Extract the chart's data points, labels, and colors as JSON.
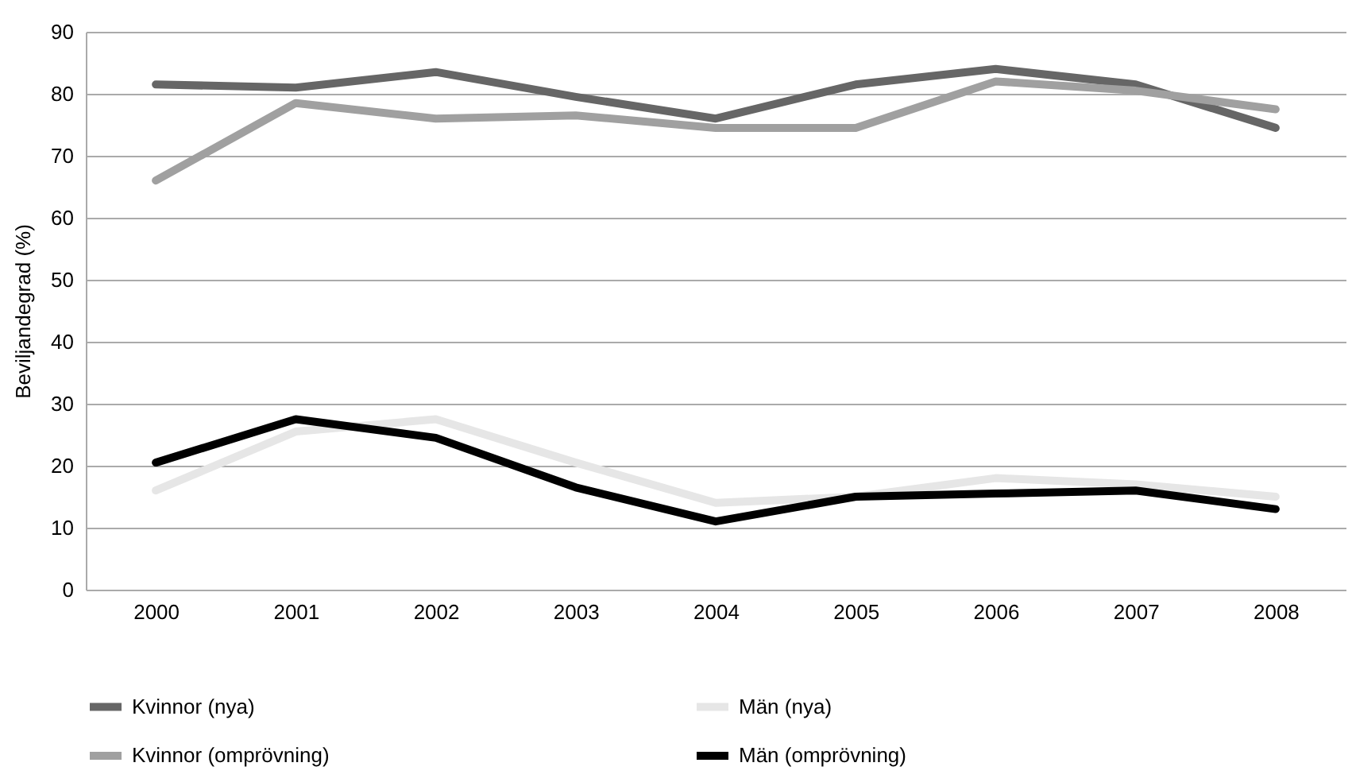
{
  "chart_data": {
    "type": "line",
    "ylabel": "Beviljandegrad (%)",
    "categories": [
      "2000",
      "2001",
      "2002",
      "2003",
      "2004",
      "2005",
      "2006",
      "2007",
      "2008"
    ],
    "series": [
      {
        "name": "Kvinnor (nya)",
        "color": "#666666",
        "values": [
          81.5,
          81,
          83.5,
          79.5,
          76,
          81.5,
          84,
          81.5,
          74.5
        ]
      },
      {
        "name": "Män (nya)",
        "color": "#e6e6e6",
        "values": [
          16,
          25.5,
          27.5,
          20.5,
          14,
          15,
          18,
          17,
          15
        ]
      },
      {
        "name": "Kvinnor (omprövning)",
        "color": "#a0a0a0",
        "values": [
          66,
          78.5,
          76,
          76.5,
          74.5,
          74.5,
          82,
          80.5,
          77.5
        ]
      },
      {
        "name": "Män (omprövning)",
        "color": "#000000",
        "values": [
          20.5,
          27.5,
          24.5,
          16.5,
          11,
          15,
          15.5,
          16,
          13
        ]
      }
    ],
    "ylim": [
      0,
      90
    ],
    "yticks": [
      0,
      10,
      20,
      30,
      40,
      50,
      60,
      70,
      80,
      90
    ],
    "grid": "y",
    "legend": "bottom",
    "marker": "none",
    "line_style": "solid"
  }
}
